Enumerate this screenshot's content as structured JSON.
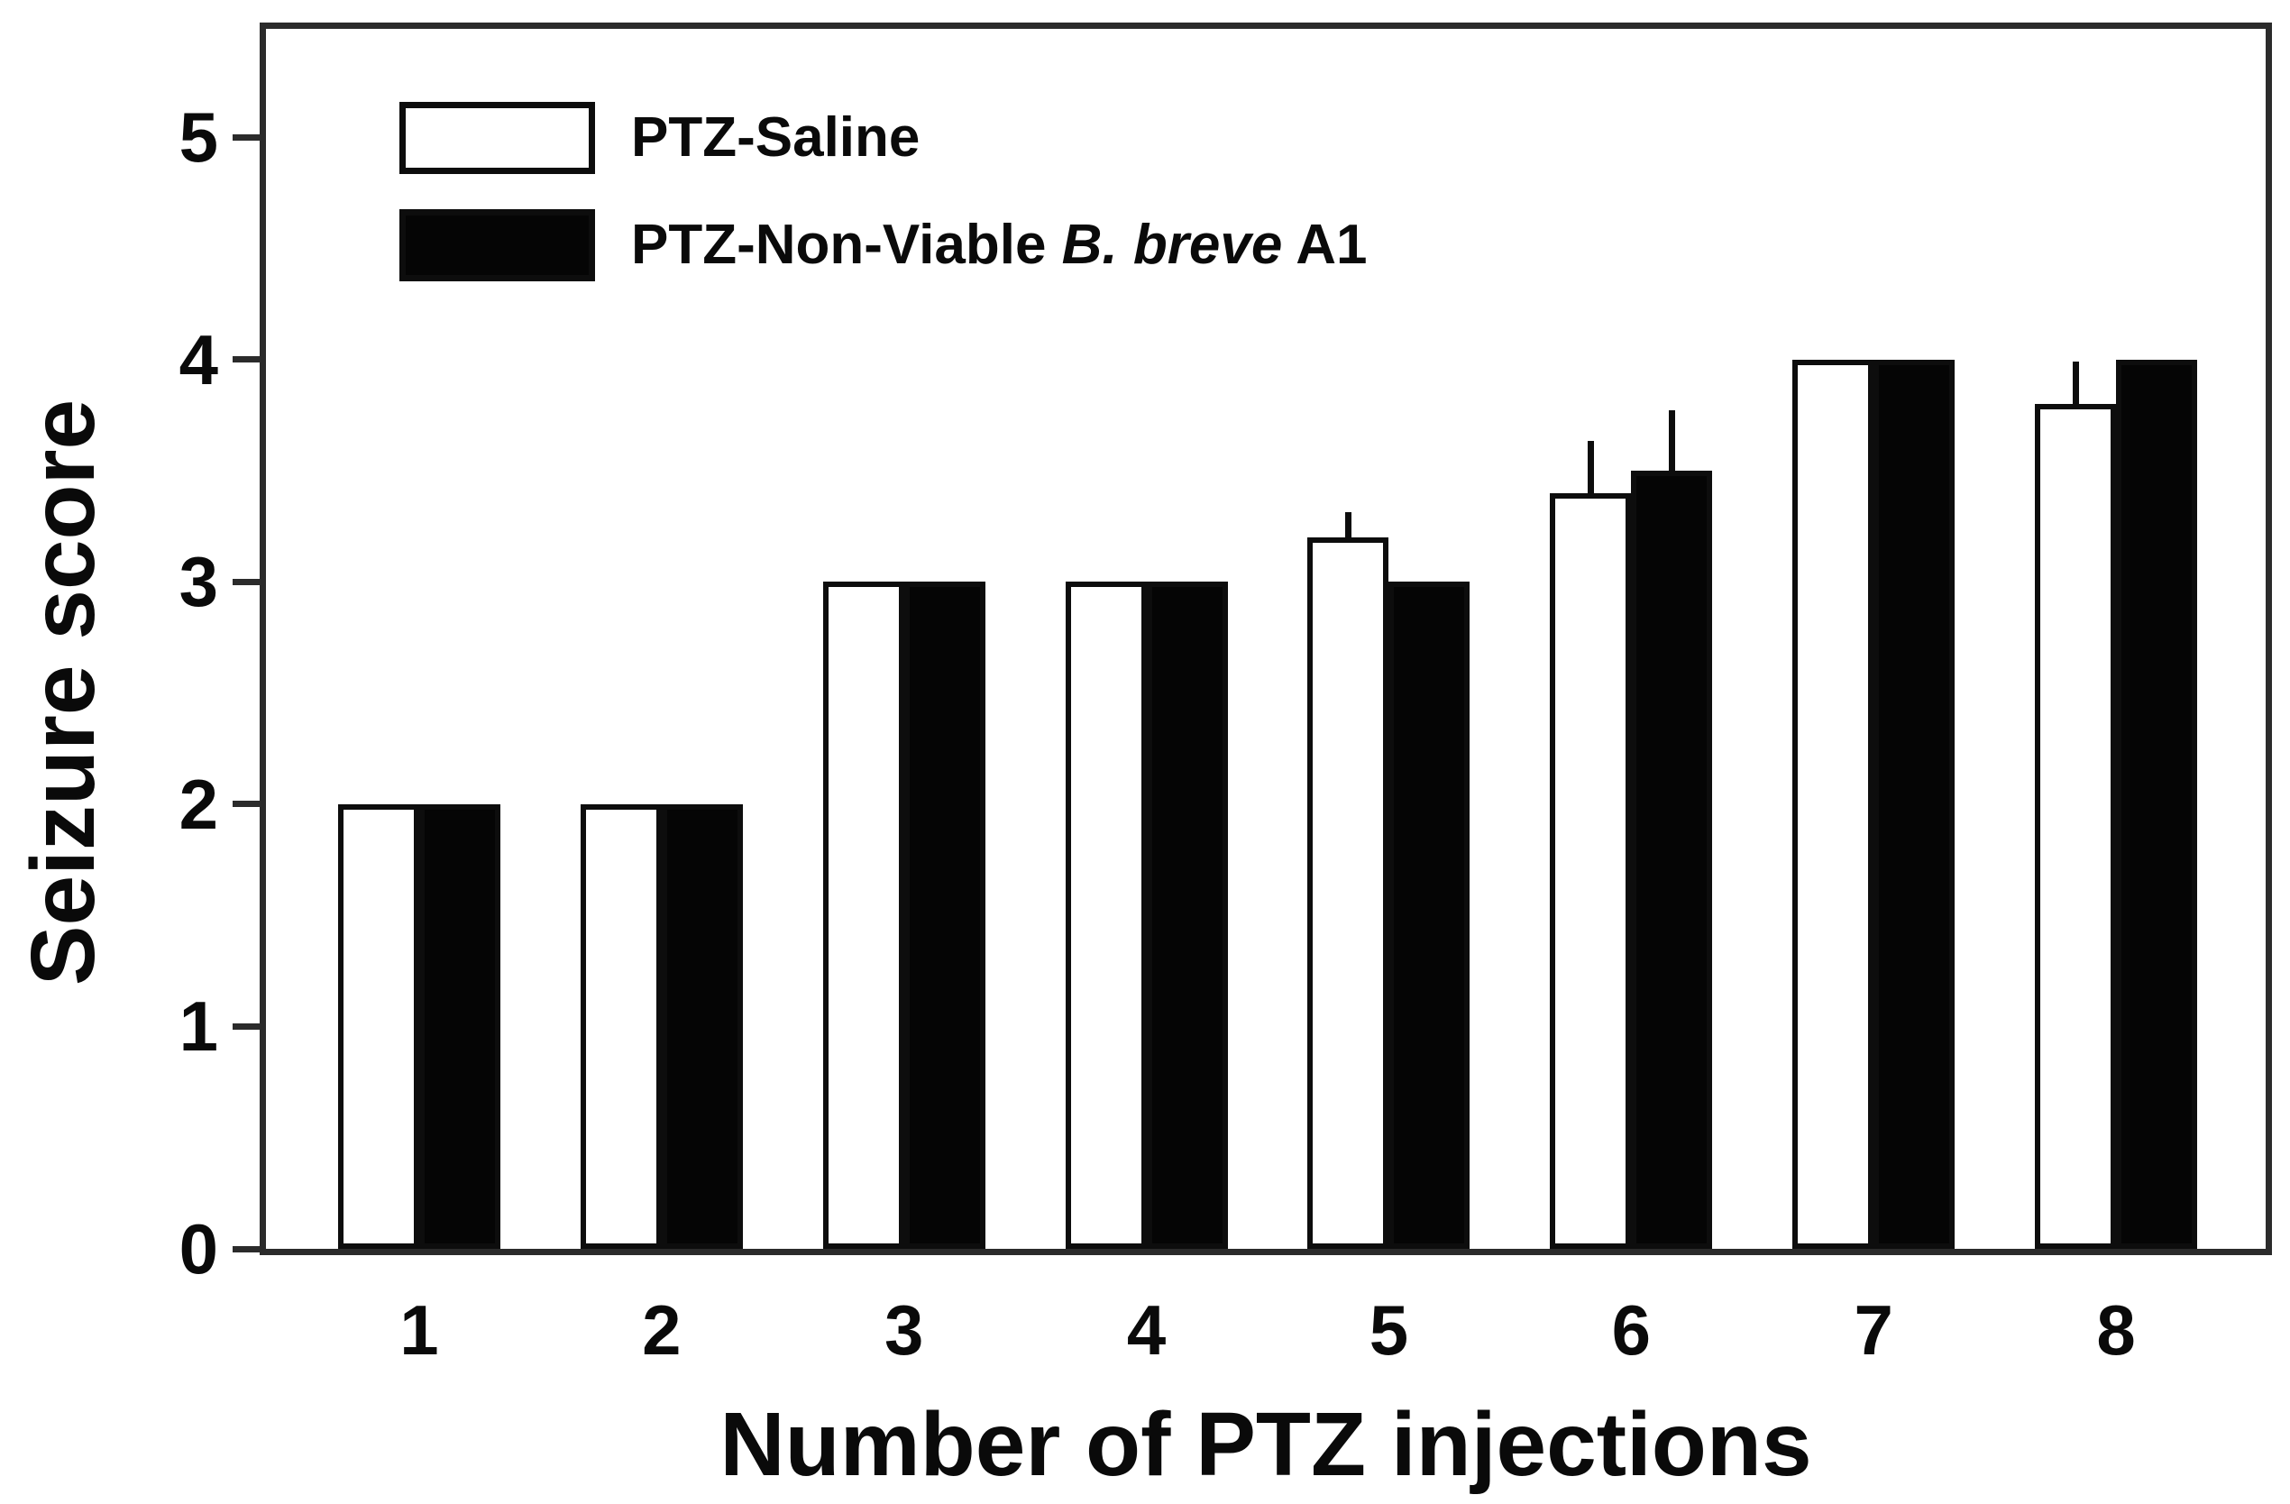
{
  "figure": {
    "background": "#ffffff",
    "frame_color": "#2b2b2b",
    "bar_outline_color": "#0d0d0d",
    "bar_fill_white": "#ffffff",
    "bar_fill_black": "#050505",
    "text_color": "#0a0a0a"
  },
  "legend": {
    "items": [
      {
        "swatch": "white",
        "label_prefix": "PTZ-Saline",
        "label_italic": "",
        "label_suffix": ""
      },
      {
        "swatch": "black",
        "label_prefix": "PTZ-Non-Viable ",
        "label_italic": "B. breve",
        "label_suffix": " A1"
      }
    ]
  },
  "chart_data": {
    "type": "bar",
    "title": "",
    "xlabel": "Number of PTZ injections",
    "ylabel": "Seizure score",
    "categories": [
      "1",
      "2",
      "3",
      "4",
      "5",
      "6",
      "7",
      "8"
    ],
    "series": [
      {
        "name": "PTZ-Saline",
        "fill": "white",
        "values": [
          2,
          2,
          3,
          3,
          3.2,
          3.4,
          4,
          3.8
        ],
        "errors_plus": [
          0,
          0,
          0,
          0,
          0.12,
          0.24,
          0,
          0.2
        ]
      },
      {
        "name": "PTZ-Non-Viable B. breve A1",
        "fill": "black",
        "values": [
          2,
          2,
          3,
          3,
          3,
          3.5,
          4,
          4
        ],
        "errors_plus": [
          0,
          0,
          0,
          0,
          0,
          0.28,
          0,
          0
        ]
      }
    ],
    "ylim": [
      0,
      5.5
    ],
    "yticks": [
      0,
      1,
      2,
      3,
      4,
      5
    ],
    "grid": false,
    "legend_position": "inside-top-left",
    "error_bars": "upper-only-no-caps"
  }
}
